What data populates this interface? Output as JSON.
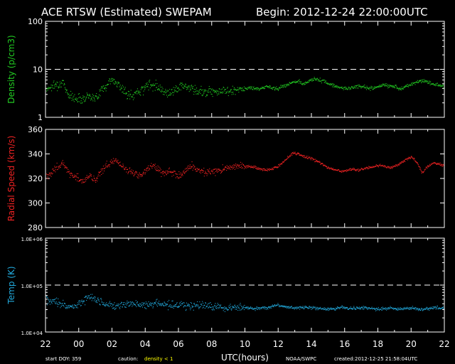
{
  "header": {
    "title": "ACE RTSW (Estimated) SWEPAM",
    "begin": "Begin: 2012-12-24 22:00:00UTC"
  },
  "footer": {
    "start_doy": "start DOY: 359",
    "caution_label": "caution:",
    "caution_value": "density < 1",
    "credit": "NOAA/SWPC",
    "created": "created:2012-12-25 21:58:04UTC"
  },
  "colors": {
    "background": "#000000",
    "axes": "#ffffff",
    "density": "#22cc22",
    "speed": "#ee2222",
    "temp": "#22aadd",
    "caution": "#ffff00"
  },
  "chart_data": [
    {
      "type": "scatter",
      "ylabel": "Density (p/cm3)",
      "yscale": "log",
      "ylim": [
        1,
        100
      ],
      "yticks": [
        "1",
        "10",
        "100"
      ],
      "reference_line": 10,
      "series": [
        {
          "values": [
            4.0,
            4.5,
            5.0,
            5.2,
            3.2,
            2.5,
            2.6,
            2.5,
            3.0,
            2.4,
            3.5,
            4.5,
            6.0,
            5.5,
            4.0,
            3.0,
            2.8,
            3.5,
            4.0,
            4.8,
            5.0,
            4.2,
            3.5,
            3.2,
            4.0,
            4.5,
            4.5,
            4.0,
            3.5,
            3.5,
            3.5,
            3.8,
            3.5,
            3.6,
            3.5,
            3.7,
            3.8,
            4.0,
            4.2,
            4.0,
            4.0,
            4.5,
            4.2,
            4.0,
            4.5,
            5.0,
            5.5,
            5.5,
            5.0,
            6.0,
            6.5,
            6.0,
            5.5,
            4.8,
            4.5,
            4.2,
            4.0,
            4.2,
            4.5,
            4.5,
            4.0,
            4.2,
            4.5,
            4.8,
            4.5,
            4.5,
            4.0,
            4.5,
            5.0,
            5.5,
            6.0,
            5.5,
            5.0,
            4.8,
            4.6
          ]
        }
      ]
    },
    {
      "type": "scatter",
      "ylabel": "Radial Speed (km/s)",
      "ylim": [
        280,
        360
      ],
      "yticks": [
        "280",
        "300",
        "320",
        "340",
        "360"
      ],
      "series": [
        {
          "values": [
            322,
            325,
            330,
            333,
            326,
            322,
            320,
            318,
            322,
            318,
            325,
            330,
            333,
            335,
            330,
            327,
            325,
            322,
            325,
            328,
            330,
            327,
            325,
            326,
            324,
            322,
            328,
            330,
            327,
            326,
            325,
            326,
            327,
            328,
            329,
            330,
            331,
            330,
            330,
            329,
            328,
            327,
            328,
            330,
            333,
            338,
            341,
            340,
            338,
            337,
            335,
            333,
            330,
            328,
            327,
            326,
            327,
            328,
            327,
            328,
            329,
            330,
            331,
            330,
            329,
            330,
            333,
            336,
            338,
            333,
            325,
            330,
            333,
            332,
            331
          ]
        }
      ]
    },
    {
      "type": "scatter",
      "ylabel": "Temp (K)",
      "yscale": "log",
      "ylim": [
        10000,
        1000000
      ],
      "yticks": [
        "1.0E+04",
        "1.0E+05",
        "1.0E+06"
      ],
      "reference_line": 100000,
      "series": [
        {
          "values": [
            50000,
            46000,
            42000,
            38000,
            36000,
            34000,
            40000,
            48000,
            56000,
            52000,
            44000,
            40000,
            38000,
            36000,
            38000,
            40000,
            42000,
            40000,
            38000,
            40000,
            42000,
            40000,
            38000,
            36000,
            38000,
            40000,
            38000,
            36000,
            37000,
            38000,
            36000,
            35000,
            34000,
            33000,
            34000,
            35000,
            36000,
            34000,
            33000,
            32000,
            33000,
            34000,
            36000,
            38000,
            36000,
            34000,
            33000,
            34000,
            35000,
            34000,
            33000,
            32000,
            31000,
            32000,
            33000,
            34000,
            33000,
            32000,
            33000,
            34000,
            33000,
            32000,
            31000,
            32000,
            33000,
            32000,
            31000,
            32000,
            33000,
            32000,
            31000,
            32000,
            33000,
            34000,
            33000
          ]
        }
      ]
    }
  ],
  "xaxis": {
    "label": "UTC(hours)",
    "ticks": [
      "22",
      "00",
      "02",
      "04",
      "06",
      "08",
      "10",
      "12",
      "14",
      "16",
      "18",
      "20",
      "22"
    ],
    "range_hours": [
      0,
      24
    ]
  }
}
